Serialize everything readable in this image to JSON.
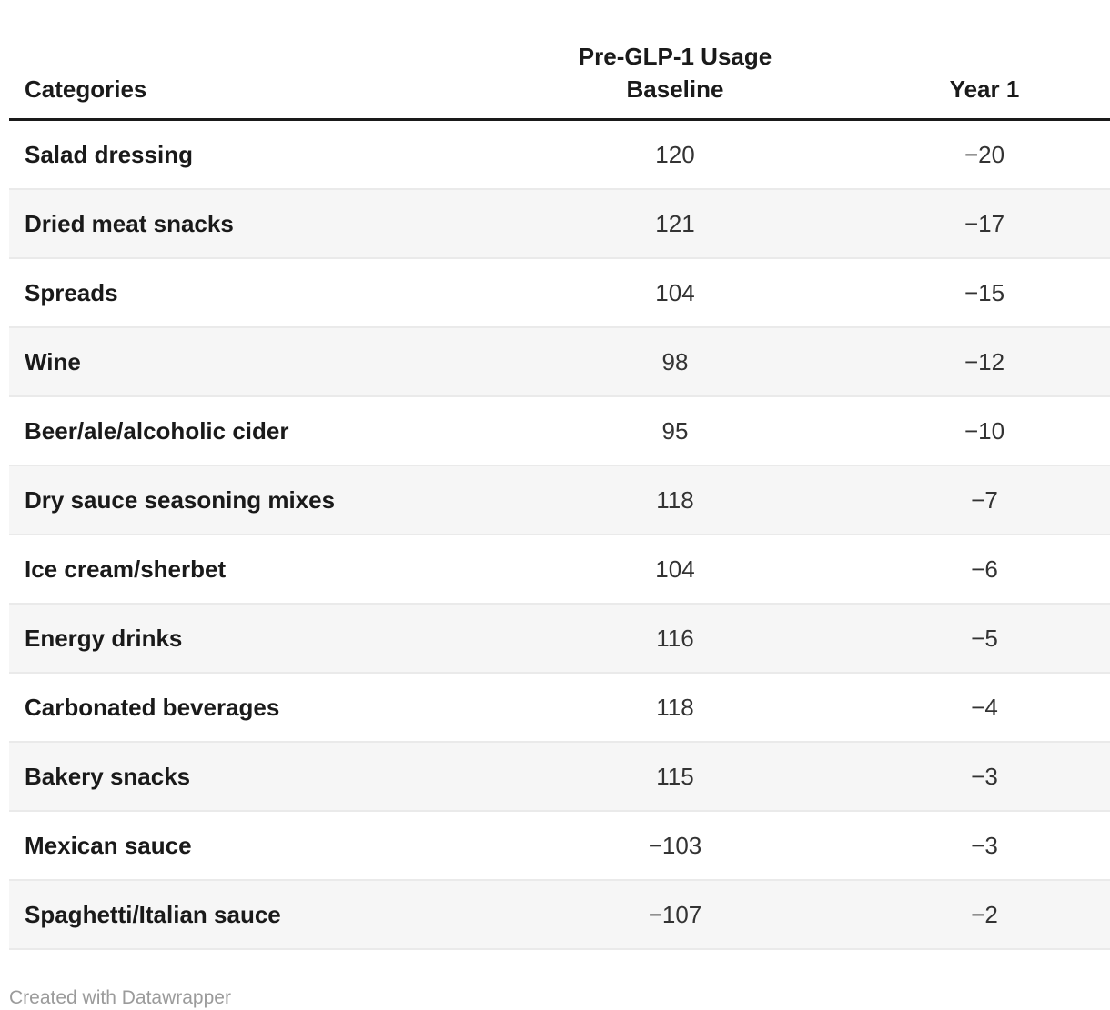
{
  "table": {
    "columns": {
      "categories": "Categories",
      "baseline_line1": "Pre-GLP-1 Usage",
      "baseline_line2": "Baseline",
      "year1": "Year 1"
    },
    "rows": [
      {
        "category": "Salad dressing",
        "baseline": "120",
        "year1": "−20"
      },
      {
        "category": "Dried meat snacks",
        "baseline": "121",
        "year1": "−17"
      },
      {
        "category": "Spreads",
        "baseline": "104",
        "year1": "−15"
      },
      {
        "category": "Wine",
        "baseline": "98",
        "year1": "−12"
      },
      {
        "category": "Beer/ale/alcoholic cider",
        "baseline": "95",
        "year1": "−10"
      },
      {
        "category": "Dry sauce seasoning mixes",
        "baseline": "118",
        "year1": "−7"
      },
      {
        "category": "Ice cream/sherbet",
        "baseline": "104",
        "year1": "−6"
      },
      {
        "category": "Energy drinks",
        "baseline": "116",
        "year1": "−5"
      },
      {
        "category": "Carbonated beverages",
        "baseline": "118",
        "year1": "−4"
      },
      {
        "category": "Bakery snacks",
        "baseline": "115",
        "year1": "−3"
      },
      {
        "category": "Mexican sauce",
        "baseline": "−103",
        "year1": "−3"
      },
      {
        "category": "Spaghetti/Italian sauce",
        "baseline": "−107",
        "year1": "−2"
      }
    ]
  },
  "footer": {
    "attribution": "Created with Datawrapper"
  },
  "colors": {
    "text": "#1a1a1a",
    "number_text": "#333333",
    "stripe": "#f6f6f6",
    "row_border": "#eaeaea",
    "header_rule": "#1a1a1a",
    "footer_text": "#9b9b9b",
    "background": "#ffffff"
  },
  "chart_data": {
    "type": "table",
    "title": "",
    "categories": [
      "Salad dressing",
      "Dried meat snacks",
      "Spreads",
      "Wine",
      "Beer/ale/alcoholic cider",
      "Dry sauce seasoning mixes",
      "Ice cream/sherbet",
      "Energy drinks",
      "Carbonated beverages",
      "Bakery snacks",
      "Mexican sauce",
      "Spaghetti/Italian sauce"
    ],
    "series": [
      {
        "name": "Pre-GLP-1 Usage Baseline",
        "values": [
          120,
          121,
          104,
          98,
          95,
          118,
          104,
          116,
          118,
          115,
          -103,
          -107
        ]
      },
      {
        "name": "Year 1",
        "values": [
          -20,
          -17,
          -15,
          -12,
          -10,
          -7,
          -6,
          -5,
          -4,
          -3,
          -3,
          -2
        ]
      }
    ],
    "layout": "zebra-striped data table, first column left-aligned, numeric columns centered, attribution footer bottom-left"
  }
}
